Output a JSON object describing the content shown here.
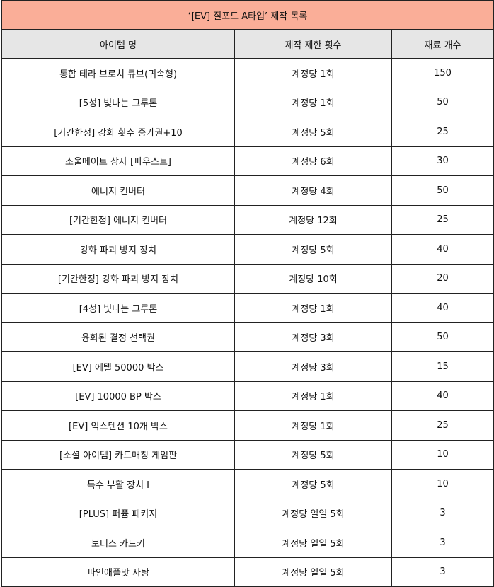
{
  "title": "‘[EV] 질포드 A타입’ 제작 목록",
  "headers": [
    "아이템 명",
    "제작 제한 횟수",
    "재료 개수"
  ],
  "colors": {
    "title_bg": "#faae98",
    "header_bg": "#e6e6e6"
  },
  "rows": [
    [
      "통합 테라 브로치 큐브(귀속형)",
      "계정당 1회",
      "150"
    ],
    [
      "[5성] 빛나는 그루톤",
      "계정당 1회",
      "50"
    ],
    [
      "[기간한정] 강화 횟수 증가권+10",
      "계정당 5회",
      "25"
    ],
    [
      "소울메이트 상자 [파우스트]",
      "계정당 6회",
      "30"
    ],
    [
      "에너지 컨버터",
      "계정당 4회",
      "50"
    ],
    [
      "[기간한정] 에너지 컨버터",
      "계정당 12회",
      "25"
    ],
    [
      "강화 파괴 방지 장치",
      "계정당 5회",
      "40"
    ],
    [
      "[기간한정] 강화 파괴 방지 장치",
      "계정당 10회",
      "20"
    ],
    [
      "[4성] 빛나는 그루톤",
      "계정당 1회",
      "40"
    ],
    [
      "융화된 결정 선택권",
      "계정당 3회",
      "50"
    ],
    [
      "[EV] 에텔 50000 박스",
      "계정당 3회",
      "15"
    ],
    [
      "[EV] 10000 BP 박스",
      "계정당 1회",
      "40"
    ],
    [
      "[EV] 익스텐션 10개 박스",
      "계정당 1회",
      "25"
    ],
    [
      "[소셜 아이템] 카드매칭 게임판",
      "계정당 5회",
      "10"
    ],
    [
      "특수 부활 장치 I",
      "계정당 5회",
      "10"
    ],
    [
      "[PLUS] 퍼퓸 패키지",
      "계정당 일일 5회",
      "3"
    ],
    [
      "보너스 카드키",
      "계정당 일일 5회",
      "3"
    ],
    [
      "파인애플맛 사탕",
      "계정당 일일 5회",
      "3"
    ]
  ]
}
